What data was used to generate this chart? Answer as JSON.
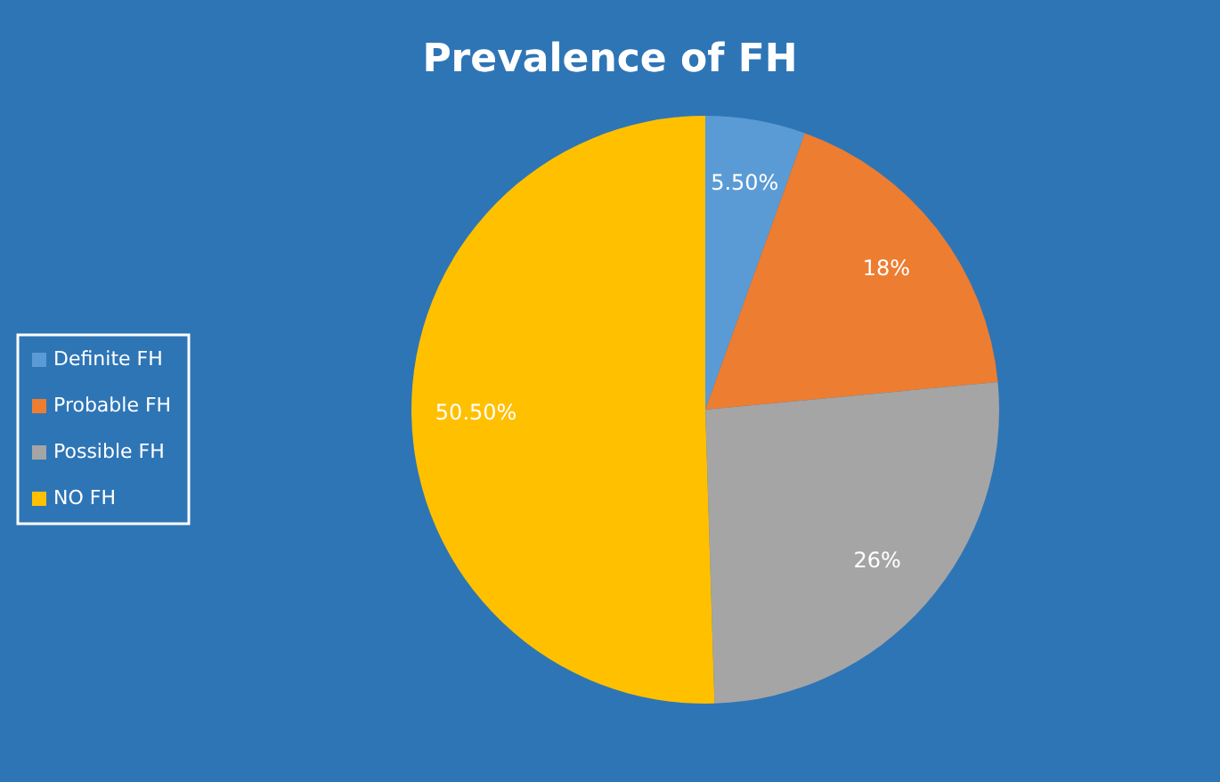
{
  "chart_data": {
    "type": "pie",
    "title": "Prevalence of FH",
    "categories": [
      "Definite FH",
      "Probable FH",
      "Possible FH",
      "NO FH"
    ],
    "values": [
      5.5,
      18,
      26,
      50.5
    ],
    "colors": [
      "#5b9bd5",
      "#ed7d31",
      "#a5a5a5",
      "#ffc000"
    ],
    "value_labels": [
      "5.50%",
      "18%",
      "26%",
      "50.50%"
    ],
    "legend": "left"
  }
}
